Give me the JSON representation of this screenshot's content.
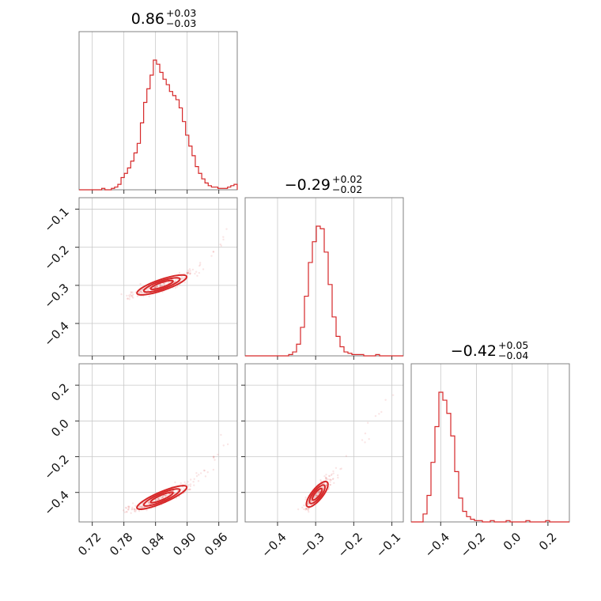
{
  "chart_data": {
    "type": "corner",
    "color": "#d62728",
    "parameters": [
      {
        "value": "0.86",
        "plus": "+0.03",
        "minus": "−0.03",
        "range": [
          0.695,
          0.995
        ]
      },
      {
        "value": "−0.29",
        "plus": "+0.02",
        "minus": "−0.02",
        "range": [
          -0.485,
          -0.07
        ]
      },
      {
        "value": "−0.42",
        "plus": "+0.05",
        "minus": "−0.04",
        "range": [
          -0.565,
          0.32
        ]
      }
    ],
    "ticks": {
      "p0": {
        "values": [
          0.72,
          0.78,
          0.84,
          0.9,
          0.96
        ],
        "labels": [
          "0.72",
          "0.78",
          "0.84",
          "0.90",
          "0.96"
        ]
      },
      "p1_y": {
        "values": [
          -0.1,
          -0.2,
          -0.3,
          -0.4
        ],
        "labels": [
          "−0.1",
          "−0.2",
          "−0.3",
          "−0.4"
        ]
      },
      "p1_x": {
        "values": [
          -0.4,
          -0.3,
          -0.2,
          -0.1
        ],
        "labels": [
          "−0.4",
          "−0.3",
          "−0.2",
          "−0.1"
        ]
      },
      "p2_y": {
        "values": [
          0.2,
          0.0,
          -0.2,
          -0.4
        ],
        "labels": [
          "0.2",
          "0.0",
          "−0.2",
          "−0.4"
        ]
      },
      "p2_x": {
        "values": [
          -0.4,
          -0.2,
          0.0,
          0.2
        ],
        "labels": [
          "−0.4",
          "−0.2",
          "0.0",
          "0.2"
        ]
      }
    },
    "histograms": {
      "p0": [
        0,
        0,
        0,
        0,
        0,
        0,
        0,
        1,
        0,
        0,
        1,
        2,
        4,
        9,
        12,
        16,
        21,
        27,
        34,
        49,
        64,
        74,
        84,
        95,
        92,
        86,
        81,
        77,
        72,
        69,
        66,
        60,
        50,
        40,
        32,
        25,
        17,
        12,
        8,
        5,
        3,
        2,
        2,
        1,
        1,
        1,
        2,
        3,
        4
      ],
      "p1": [
        0,
        0,
        0,
        0,
        0,
        0,
        0,
        0,
        0,
        0,
        0,
        1,
        3,
        9,
        22,
        46,
        72,
        88,
        100,
        98,
        80,
        55,
        30,
        15,
        7,
        3,
        2,
        1,
        1,
        1,
        0,
        0,
        0,
        1,
        0,
        0,
        0,
        0,
        0,
        0
      ],
      "p2": [
        0,
        0,
        0,
        6,
        20,
        45,
        72,
        98,
        92,
        82,
        65,
        38,
        18,
        8,
        4,
        2,
        1,
        1,
        0,
        0,
        1,
        0,
        0,
        0,
        1,
        0,
        0,
        0,
        0,
        1,
        0,
        0,
        0,
        0,
        1,
        0,
        0,
        0,
        0,
        0
      ]
    },
    "correlations": {
      "p0_p1": {
        "description": "positive, curved",
        "points": [
          [
            0.79,
            -0.325
          ],
          [
            0.81,
            -0.318
          ],
          [
            0.83,
            -0.312
          ],
          [
            0.85,
            -0.302
          ],
          [
            0.87,
            -0.292
          ],
          [
            0.89,
            -0.281
          ],
          [
            0.91,
            -0.266
          ],
          [
            0.93,
            -0.245
          ],
          [
            0.95,
            -0.215
          ],
          [
            0.97,
            -0.18
          ],
          [
            0.99,
            -0.14
          ]
        ]
      },
      "p0_p2": {
        "description": "positive, curved",
        "points": [
          [
            0.79,
            -0.5
          ],
          [
            0.81,
            -0.48
          ],
          [
            0.83,
            -0.46
          ],
          [
            0.85,
            -0.435
          ],
          [
            0.87,
            -0.41
          ],
          [
            0.89,
            -0.38
          ],
          [
            0.91,
            -0.345
          ],
          [
            0.93,
            -0.3
          ],
          [
            0.95,
            -0.235
          ],
          [
            0.97,
            -0.14
          ],
          [
            0.99,
            0.0
          ]
        ]
      },
      "p1_p2": {
        "description": "positive, curved",
        "points": [
          [
            -0.33,
            -0.5
          ],
          [
            -0.32,
            -0.475
          ],
          [
            -0.31,
            -0.445
          ],
          [
            -0.3,
            -0.42
          ],
          [
            -0.29,
            -0.395
          ],
          [
            -0.28,
            -0.37
          ],
          [
            -0.27,
            -0.34
          ],
          [
            -0.26,
            -0.31
          ],
          [
            -0.24,
            -0.26
          ],
          [
            -0.2,
            -0.15
          ],
          [
            -0.15,
            -0.02
          ],
          [
            -0.1,
            0.15
          ]
        ]
      }
    }
  }
}
